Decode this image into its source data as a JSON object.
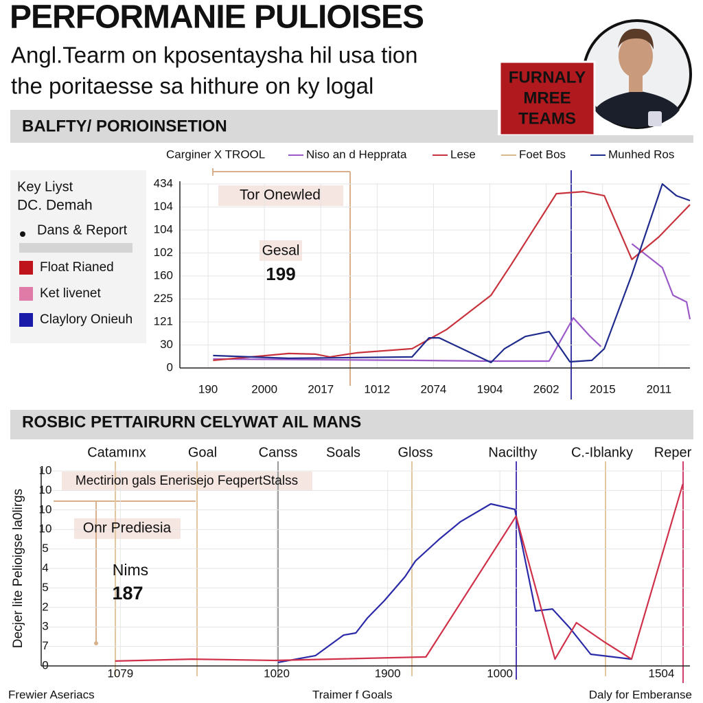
{
  "header": {
    "title": "PERFORMANIE PULIOISES",
    "subtitle": [
      "Angl.Tearm on kposentaysha hil usa tion",
      "the poritaesse sa hithure on ky logal"
    ],
    "badge": [
      "FURNALY",
      "MREE",
      "TEAMS"
    ]
  },
  "chart_data": [
    {
      "type": "line",
      "title": "BALFTY/ PORIOINSETION",
      "legend_label": "Carginer X TROOL",
      "key": {
        "title": "Key Liyst",
        "subtitle": "DC. Demah",
        "bullet": "Dans & Report",
        "items": [
          {
            "label": "Float Rianed",
            "color": "#c0141c"
          },
          {
            "label": "Ket livenet",
            "color": "#e07aa6"
          },
          {
            "label": "Claylory Onieuh",
            "color": "#1a1aa8"
          }
        ]
      },
      "annotations": [
        "Tor Onewled",
        "Gesal",
        "199"
      ],
      "xlim": [
        -0.5,
        8.55
      ],
      "xticks": [
        {
          "value": 0,
          "label": "190"
        },
        {
          "value": 1,
          "label": "2000"
        },
        {
          "value": 2,
          "label": "2017"
        },
        {
          "value": 3,
          "label": "1012"
        },
        {
          "value": 4,
          "label": "2074"
        },
        {
          "value": 5,
          "label": "1904"
        },
        {
          "value": 6,
          "label": "2602"
        },
        {
          "value": 7,
          "label": "2015"
        },
        {
          "value": 8,
          "label": "2011"
        }
      ],
      "ylim": [
        0,
        8
      ],
      "yticks": [
        0,
        {
          "value": 1,
          "label": "30"
        },
        {
          "value": 2,
          "label": "121"
        },
        {
          "value": 3,
          "label": "225"
        },
        {
          "value": 4,
          "label": "160"
        },
        {
          "value": 5,
          "label": "102"
        },
        {
          "value": 6,
          "label": "104"
        },
        {
          "value": 7,
          "label": "104"
        },
        {
          "value": 8,
          "label": "434"
        }
      ],
      "grid": true,
      "series": [
        {
          "name": "Niso an d Hepprata",
          "color": "#9b59c8",
          "x": [
            0.09,
            3.62,
            5.02,
            6.05,
            6.48,
            6.78,
            6.97,
            null,
            7.52,
            8.06,
            8.25,
            8.49,
            8.55
          ],
          "values": [
            0.39,
            0.33,
            0.3,
            0.3,
            2.18,
            1.37,
            0.93,
            null,
            5.4,
            4.36,
            3.16,
            2.87,
            2.12
          ]
        },
        {
          "name": "Lese",
          "color": "#c8323c",
          "x": [
            0.09,
            1.43,
            1.91,
            2.16,
            2.64,
            3.62,
            4.23,
            5.02,
            5.38,
            6.18,
            6.66,
            7.03,
            7.52,
            8.0,
            8.55
          ],
          "values": [
            0.33,
            0.63,
            0.6,
            0.48,
            0.66,
            0.84,
            1.67,
            3.16,
            4.5,
            7.58,
            7.67,
            7.49,
            4.72,
            5.7,
            7.1
          ]
        },
        {
          "name": "Foet Bos",
          "color": "#d8b98c",
          "x": [],
          "values": []
        },
        {
          "name": "Munhed Ros",
          "color": "#1e2a8c",
          "x": [
            0.09,
            1.43,
            3.62,
            3.92,
            4.1,
            5.02,
            5.26,
            5.63,
            6.05,
            6.42,
            6.81,
            7.03,
            7.52,
            8.06,
            8.31,
            8.55
          ],
          "values": [
            0.54,
            0.42,
            0.48,
            1.31,
            1.31,
            0.24,
            0.84,
            1.37,
            1.58,
            0.27,
            0.33,
            0.84,
            4.06,
            8.0,
            7.49,
            7.28
          ]
        }
      ]
    },
    {
      "type": "line",
      "title": "ROSBIC PETTAIRURN CELYWAT AIL MANS",
      "ylabel": "Decjer lite Pelioigse la0lirgs",
      "top_labels": [
        "Catamınx",
        "Goal",
        "Canss",
        "Soals",
        "Gloss",
        "Nacilthy",
        "C.-Iblanky",
        "Reper"
      ],
      "annotations": [
        "Mectirion gals Enerisejo FeqpertStalss",
        "Onr Prediesia",
        "Nims",
        "187"
      ],
      "xlim": [
        0,
        10
      ],
      "xticks": [
        {
          "value": 1.22,
          "label": "1079"
        },
        {
          "value": 3.63,
          "label": "1020"
        },
        {
          "value": 5.34,
          "label": "1900"
        },
        {
          "value": 7.07,
          "label": "1000"
        },
        {
          "value": 9.56,
          "label": "1504"
        }
      ],
      "ylim": [
        0,
        10
      ],
      "yticks": [
        0,
        {
          "value": 1,
          "label": "7"
        },
        {
          "value": 2,
          "label": "3"
        },
        {
          "value": 3,
          "label": "2"
        },
        {
          "value": 4,
          "label": "5"
        },
        {
          "value": 5,
          "label": "4"
        },
        {
          "value": 6,
          "label": "5"
        },
        {
          "value": 7,
          "label": "10"
        },
        {
          "value": 8,
          "label": "10"
        },
        {
          "value": 9,
          "label": "10"
        },
        {
          "value": 10,
          "label": "10"
        }
      ],
      "grid": true,
      "series": [
        {
          "color": "#2a2aa8",
          "x": [
            3.65,
            4.23,
            4.66,
            4.85,
            5.03,
            5.29,
            5.61,
            5.77,
            6.14,
            6.46,
            6.93,
            7.3,
            7.62,
            7.88,
            8.15,
            8.47,
            9.1
          ],
          "values": [
            0.18,
            0.53,
            1.58,
            1.69,
            2.46,
            3.35,
            4.58,
            5.39,
            6.51,
            7.39,
            8.31,
            8.03,
            2.82,
            2.92,
            1.94,
            0.6,
            0.35
          ]
        },
        {
          "color": "#d0304a",
          "x": [
            1.14,
            2.33,
            3.6,
            5.93,
            7.32,
            7.92,
            8.25,
            8.68,
            9.1,
            9.89
          ],
          "values": [
            0.25,
            0.35,
            0.28,
            0.46,
            7.68,
            0.35,
            2.22,
            1.23,
            0.35,
            9.33
          ]
        }
      ]
    }
  ],
  "footer": [
    "Frewier Aseriacs",
    "Traimer f Goals",
    "Daly for Emberanse"
  ]
}
